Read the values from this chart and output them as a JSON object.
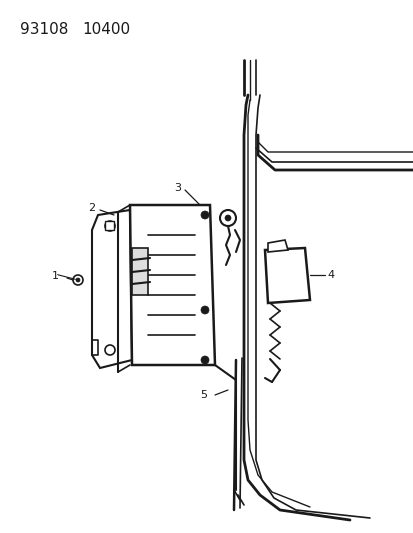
{
  "title_line1": "93108",
  "title_line2": "10400",
  "bg_color": "#ffffff",
  "line_color": "#1a1a1a",
  "fig_width": 4.14,
  "fig_height": 5.33,
  "dpi": 100
}
